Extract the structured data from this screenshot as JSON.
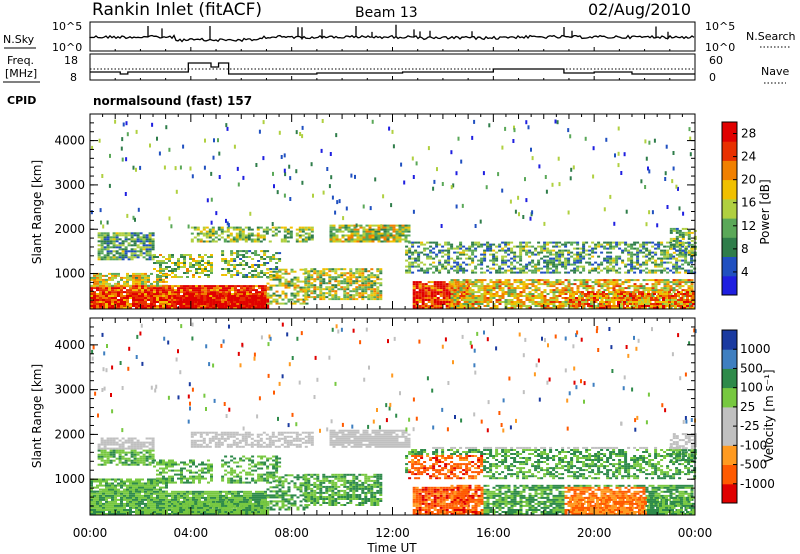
{
  "header": {
    "station": "Rankin Inlet (fitACF)",
    "beam": "Beam 13",
    "date": "02/Aug/2010"
  },
  "nsky_panel": {
    "left_label": "N.Sky",
    "right_label": "N.Search",
    "left_ticks": [
      "10^5",
      "10^0"
    ],
    "right_ticks": [
      "10^5",
      "10^0"
    ]
  },
  "freq_panel": {
    "left_label_1": "Freq.",
    "left_label_2": "[MHz]",
    "right_label": "Nave",
    "left_ticks": [
      "18",
      "8"
    ],
    "right_ticks": [
      "60",
      "0"
    ]
  },
  "cpid": {
    "label": "CPID",
    "value": "normalsound (fast) 157"
  },
  "colors": {
    "power": [
      "#1f1fe0",
      "#2050c0",
      "#2f7d4a",
      "#5aa858",
      "#b0d040",
      "#f0c000",
      "#f08000",
      "#e83000",
      "#e00000"
    ],
    "velocity": [
      "#e00000",
      "#ff5a00",
      "#ff9a20",
      "#c0c0c0",
      "#c0c0c0",
      "#77c840",
      "#2e8a4a",
      "#3f7fc0",
      "#1a3aa0"
    ]
  },
  "chart_data": [
    {
      "type": "heatmap",
      "name": "power",
      "ylabel": "Slant Range [km]",
      "y_ticks": [
        1000,
        2000,
        3000,
        4000
      ],
      "ylim": [
        200,
        4600
      ],
      "x_ticks": [
        "00:00",
        "04:00",
        "08:00",
        "12:00",
        "16:00",
        "20:00",
        "00:00"
      ],
      "xlim_hours": [
        0,
        24
      ],
      "colorbar": {
        "label": "Power [dB]",
        "ticks": [
          "4",
          "8",
          "12",
          "16",
          "20",
          "24",
          "28"
        ],
        "range": [
          0,
          30
        ]
      }
    },
    {
      "type": "heatmap",
      "name": "velocity",
      "ylabel": "Slant Range [km]",
      "y_ticks": [
        1000,
        2000,
        3000,
        4000
      ],
      "ylim": [
        200,
        4600
      ],
      "x_ticks": [
        "00:00",
        "04:00",
        "08:00",
        "12:00",
        "16:00",
        "20:00",
        "00:00"
      ],
      "xlim_hours": [
        0,
        24
      ],
      "xlabel": "Time UT",
      "colorbar": {
        "label": "Velocity [m s⁻¹]",
        "ticks": [
          "1000",
          "500",
          "100",
          "25",
          "-25",
          "-100",
          "-500",
          "-1000"
        ]
      }
    }
  ]
}
